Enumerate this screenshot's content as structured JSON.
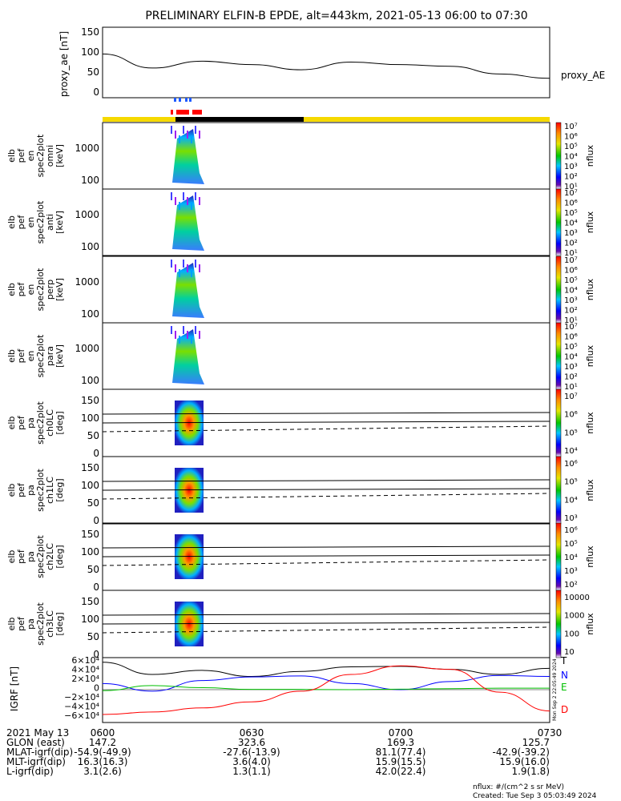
{
  "title": "PRELIMINARY ELFIN-B EPDE, alt=443km, 2021-05-13 06:00 to 07:30",
  "colors": {
    "bar_yellow": "#f6d900",
    "bar_black": "#000000",
    "marker_blue": "#1f5bff",
    "marker_red": "#ff0000",
    "line_n": "#0000ff",
    "line_e": "#00c000",
    "line_d": "#ff0000"
  },
  "panel_ae": {
    "ylabel": "proxy_ae [nT]",
    "legend": "proxy_AE",
    "yticks": [
      "150",
      "100",
      "50",
      "0"
    ]
  },
  "spec_panels": [
    {
      "ylabel": [
        "elb",
        "pef",
        "en",
        "spec2plot",
        "omni",
        "[keV]"
      ],
      "yticks": [
        "1000",
        "100"
      ],
      "cbar_label": "nflux",
      "cbar_ticks": [
        "10⁷",
        "10⁶",
        "10⁵",
        "10⁴",
        "10³",
        "10²",
        "10¹"
      ]
    },
    {
      "ylabel": [
        "elb",
        "pef",
        "en",
        "spec2plot",
        "anti",
        "[keV]"
      ],
      "yticks": [
        "1000",
        "100"
      ],
      "cbar_label": "nflux",
      "cbar_ticks": [
        "10⁷",
        "10⁶",
        "10⁵",
        "10⁴",
        "10³",
        "10²",
        "10¹"
      ]
    },
    {
      "ylabel": [
        "elb",
        "pef",
        "en",
        "spec2plot",
        "perp",
        "[keV]"
      ],
      "yticks": [
        "1000",
        "100"
      ],
      "cbar_label": "nflux",
      "cbar_ticks": [
        "10⁷",
        "10⁶",
        "10⁵",
        "10⁴",
        "10³",
        "10²",
        "10¹"
      ]
    },
    {
      "ylabel": [
        "elb",
        "pef",
        "en",
        "spec2plot",
        "para",
        "[keV]"
      ],
      "yticks": [
        "1000",
        "100"
      ],
      "cbar_label": "nflux",
      "cbar_ticks": [
        "10⁷",
        "10⁶",
        "10⁵",
        "10⁴",
        "10³",
        "10²",
        "10¹"
      ]
    }
  ],
  "pa_panels": [
    {
      "ylabel": [
        "elb",
        "pef",
        "pa",
        "spec2plot",
        "ch0LC",
        "[deg]"
      ],
      "yticks": [
        "150",
        "100",
        "50",
        "0"
      ],
      "cbar_label": "nflux",
      "cbar_ticks": [
        "10⁷",
        "10⁶",
        "10⁵",
        "10⁴"
      ]
    },
    {
      "ylabel": [
        "elb",
        "pef",
        "pa",
        "spec2plot",
        "ch1LC",
        "[deg]"
      ],
      "yticks": [
        "150",
        "100",
        "50",
        "0"
      ],
      "cbar_label": "nflux",
      "cbar_ticks": [
        "10⁶",
        "10⁵",
        "10⁴",
        "10³"
      ]
    },
    {
      "ylabel": [
        "elb",
        "pef",
        "pa",
        "spec2plot",
        "ch2LC",
        "[deg]"
      ],
      "yticks": [
        "150",
        "100",
        "50",
        "0"
      ],
      "cbar_label": "nflux",
      "cbar_ticks": [
        "10⁶",
        "10⁵",
        "10⁴",
        "10³",
        "10²"
      ]
    },
    {
      "ylabel": [
        "elb",
        "pef",
        "pa",
        "spec2plot",
        "ch3LC",
        "[deg]"
      ],
      "yticks": [
        "150",
        "100",
        "50",
        "0"
      ],
      "cbar_label": "nflux",
      "cbar_ticks": [
        "10000",
        "1000",
        "100",
        "10"
      ]
    }
  ],
  "panel_igrf": {
    "ylabel": "IGRF [nT]",
    "yticks": [
      "6×10⁴",
      "4×10⁴",
      "2×10⁴",
      "0",
      "−2×10⁴",
      "−4×10⁴",
      "−6×10⁴"
    ],
    "legend": [
      "T",
      "N",
      "E",
      "D"
    ],
    "side_text": "Mon Sep  2 22:05:49 2024"
  },
  "chart_data": {
    "type": "line",
    "title": "PRELIMINARY ELFIN-B EPDE, alt=443km, 2021-05-13 06:00 to 07:30",
    "x": [
      "0600",
      "0610",
      "0620",
      "0630",
      "0640",
      "0650",
      "0700",
      "0710",
      "0720",
      "0730"
    ],
    "series": [
      {
        "name": "proxy_AE",
        "values": [
          95,
          62,
          78,
          70,
          58,
          76,
          70,
          66,
          48,
          38
        ]
      },
      {
        "name": "T",
        "values": [
          54000,
          30000,
          38000,
          26000,
          36000,
          45000,
          46000,
          40000,
          30000,
          42000
        ]
      },
      {
        "name": "N",
        "values": [
          12000,
          -3000,
          18000,
          25000,
          27000,
          12000,
          0,
          16000,
          28000,
          26000
        ]
      },
      {
        "name": "E",
        "values": [
          -2000,
          8000,
          4000,
          500,
          500,
          0,
          1000,
          2000,
          3000,
          3000
        ]
      },
      {
        "name": "D",
        "values": [
          -49000,
          -44000,
          -36000,
          -24000,
          -3000,
          30000,
          47000,
          40000,
          -5000,
          -42000
        ]
      }
    ],
    "ylim_ae": [
      0,
      150
    ],
    "ylim_igrf": [
      -60000,
      60000
    ]
  },
  "x_axis": {
    "date": "2021 May 13",
    "ticks": [
      "0600",
      "0630",
      "0700",
      "0730"
    ],
    "rows": [
      {
        "label": "GLON (east)",
        "values": [
          "147.2",
          "323.6",
          "169.3",
          "125.7"
        ]
      },
      {
        "label": "MLAT-igrf(dip)",
        "values": [
          "-54.9(-49.9)",
          "-27.6(-13.9)",
          "81.1(77.4)",
          "-42.9(-39.2)"
        ]
      },
      {
        "label": "MLT-igrf(dip)",
        "values": [
          "16.3(16.3)",
          "3.6(4.0)",
          "15.9(15.5)",
          "15.9(16.0)"
        ]
      },
      {
        "label": "L-igrf(dip)",
        "values": [
          "3.1(2.6)",
          "1.3(1.1)",
          "42.0(22.4)",
          "1.9(1.8)"
        ]
      }
    ]
  },
  "footer": {
    "units": "nflux: #/(cm^2 s sr MeV)",
    "created": "Created: Tue Sep  3 05:03:49 2024"
  }
}
